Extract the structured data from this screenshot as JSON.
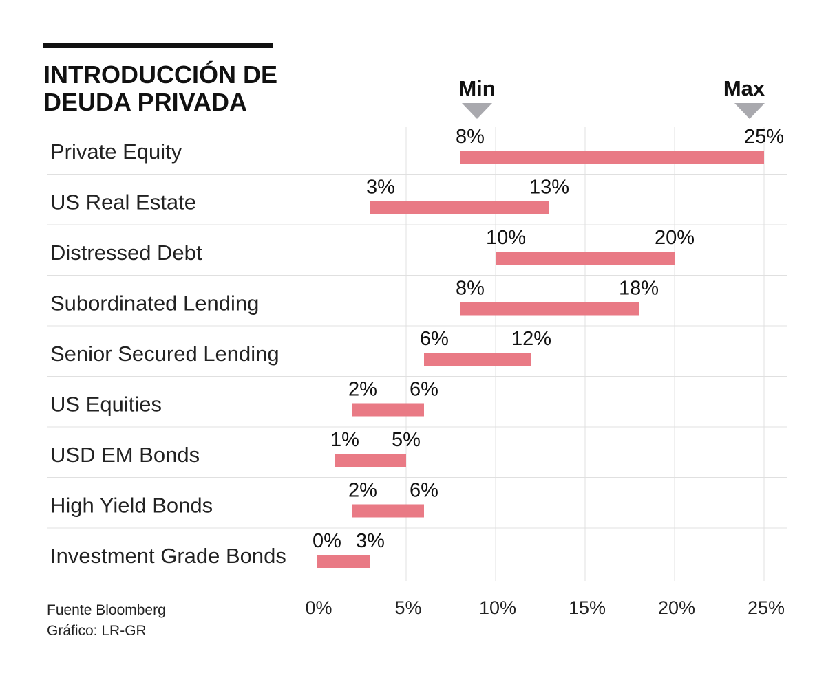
{
  "title_line1": "INTRODUCCIÓN DE",
  "title_line2": "DEUDA PRIVADA",
  "legend": {
    "min_label": "Min",
    "max_label": "Max"
  },
  "footer": {
    "source": "Fuente Bloomberg",
    "credit": "Gráfico: LR-GR"
  },
  "colors": {
    "bar": "#e97a85",
    "grid": "#e0e0e0",
    "marker": "#a9a9ae",
    "rule": "#111111"
  },
  "chart_data": {
    "type": "range-bar",
    "title": "INTRODUCCIÓN DE DEUDA PRIVADA",
    "xlim": [
      0,
      25
    ],
    "x_ticks": [
      0,
      5,
      10,
      15,
      20,
      25
    ],
    "x_tick_labels": [
      "0%",
      "5%",
      "10%",
      "15%",
      "20%",
      "25%"
    ],
    "categories": [
      "Private Equity",
      "US Real Estate",
      "Distressed Debt",
      "Subordinated Lending",
      "Senior Secured Lending",
      "US Equities",
      "USD EM Bonds",
      "High Yield Bonds",
      "Investment Grade Bonds"
    ],
    "min": [
      8,
      3,
      10,
      8,
      6,
      2,
      1,
      2,
      0
    ],
    "max": [
      25,
      13,
      20,
      18,
      12,
      6,
      5,
      6,
      3
    ],
    "min_labels": [
      "8%",
      "3%",
      "10%",
      "8%",
      "6%",
      "2%",
      "1%",
      "2%",
      "0%"
    ],
    "max_labels": [
      "25%",
      "13%",
      "20%",
      "18%",
      "12%",
      "6%",
      "5%",
      "6%",
      "3%"
    ]
  }
}
